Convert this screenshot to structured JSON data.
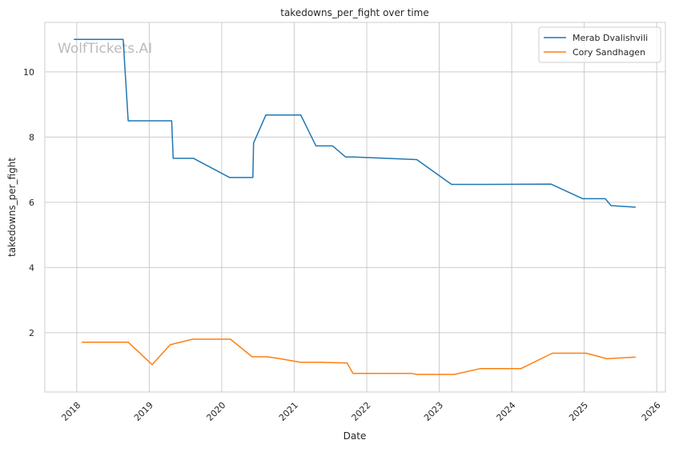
{
  "chart_data": {
    "type": "line",
    "title": "takedowns_per_fight over time",
    "xlabel": "Date",
    "ylabel": "takedowns_per_fight",
    "watermark": "WolfTickets.AI",
    "xlim": [
      2017.56,
      2026.12
    ],
    "ylim": [
      0.18,
      11.52
    ],
    "xticks": [
      2018,
      2019,
      2020,
      2021,
      2022,
      2023,
      2024,
      2025,
      2026
    ],
    "xtick_labels": [
      "2018",
      "2019",
      "2020",
      "2021",
      "2022",
      "2023",
      "2024",
      "2025",
      "2026"
    ],
    "yticks": [
      2,
      4,
      6,
      8,
      10
    ],
    "ytick_labels": [
      "2",
      "4",
      "6",
      "8",
      "10"
    ],
    "grid": true,
    "legend_position": "top-right",
    "series": [
      {
        "name": "Merab Dvalishvili",
        "color": "#1f77b4",
        "x": [
          2017.96,
          2018.64,
          2018.71,
          2019.31,
          2019.33,
          2019.61,
          2020.11,
          2020.43,
          2020.44,
          2020.61,
          2021.09,
          2021.3,
          2021.53,
          2021.71,
          2021.82,
          2022.69,
          2023.17,
          2023.64,
          2024.54,
          2024.98,
          2025.29,
          2025.37,
          2025.71
        ],
        "y": [
          11.0,
          11.0,
          8.5,
          8.5,
          7.35,
          7.35,
          6.76,
          6.76,
          7.82,
          8.68,
          8.68,
          7.73,
          7.73,
          7.39,
          7.39,
          7.31,
          6.55,
          6.55,
          6.56,
          6.11,
          6.11,
          5.9,
          5.85
        ]
      },
      {
        "name": "Cory Sandhagen",
        "color": "#ff7f0e",
        "x": [
          2018.07,
          2018.71,
          2019.04,
          2019.29,
          2019.6,
          2020.12,
          2020.42,
          2020.63,
          2020.78,
          2021.09,
          2021.36,
          2021.73,
          2021.81,
          2022.62,
          2022.69,
          2023.21,
          2023.57,
          2024.13,
          2024.56,
          2025.03,
          2025.31,
          2025.71
        ],
        "y": [
          1.71,
          1.71,
          1.02,
          1.63,
          1.8,
          1.8,
          1.26,
          1.26,
          1.21,
          1.09,
          1.09,
          1.07,
          0.75,
          0.75,
          0.72,
          0.72,
          0.9,
          0.9,
          1.37,
          1.37,
          1.2,
          1.25
        ]
      }
    ]
  }
}
